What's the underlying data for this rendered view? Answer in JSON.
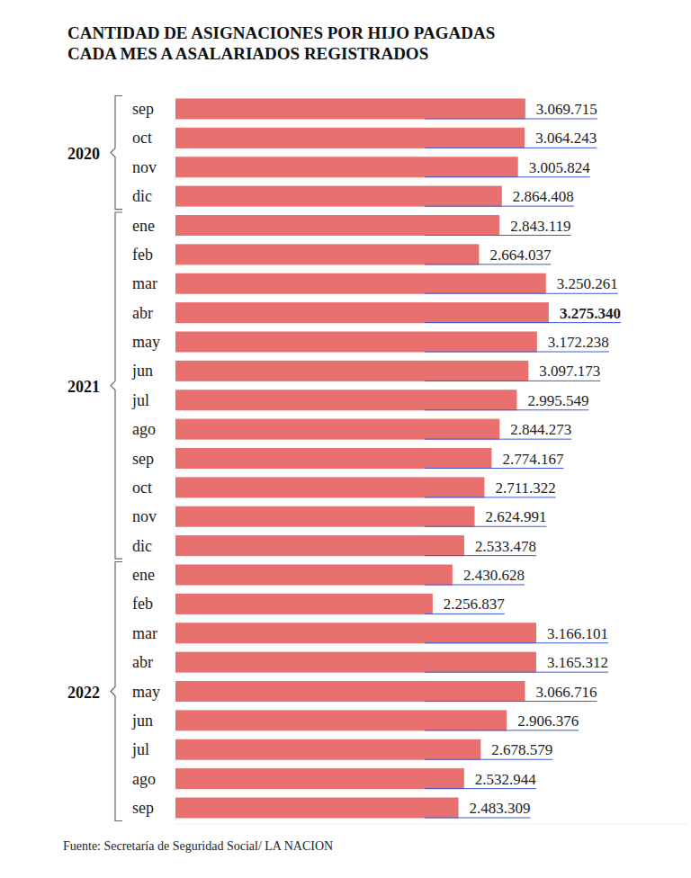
{
  "chart_data": {
    "type": "bar",
    "orientation": "horizontal",
    "title": "CANTIDAD DE ASIGNACIONES POR HIJO PAGADAS\nCADA MES A ASALARIADOS REGISTRADOS",
    "source": "Fuente: Secretaría de Seguridad Social/ LA NACION",
    "categories": [
      "sep",
      "oct",
      "nov",
      "dic",
      "ene",
      "feb",
      "mar",
      "abr",
      "may",
      "jun",
      "jul",
      "ago",
      "sep",
      "oct",
      "nov",
      "dic",
      "ene",
      "feb",
      "mar",
      "abr",
      "may",
      "jun",
      "jul",
      "ago",
      "sep"
    ],
    "groups": [
      "2020",
      "2020",
      "2020",
      "2020",
      "2021",
      "2021",
      "2021",
      "2021",
      "2021",
      "2021",
      "2021",
      "2021",
      "2021",
      "2021",
      "2021",
      "2021",
      "2022",
      "2022",
      "2022",
      "2022",
      "2022",
      "2022",
      "2022",
      "2022",
      "2022"
    ],
    "values": [
      3069715,
      3064243,
      3005824,
      2864408,
      2843119,
      2664037,
      3250261,
      3275340,
      3172238,
      3097173,
      2995549,
      2844273,
      2774167,
      2711322,
      2624991,
      2533478,
      2430628,
      2256837,
      3166101,
      3165312,
      3066716,
      2906376,
      2678579,
      2532944,
      2483309
    ],
    "value_labels": [
      "3.069.715",
      "3.064.243",
      "3.005.824",
      "2.864.408",
      "2.843.119",
      "2.664.037",
      "3.250.261",
      "3.275.340",
      "3.172.238",
      "3.097.173",
      "2.995.549",
      "2.844.273",
      "2.774.167",
      "2.711.322",
      "2.624.991",
      "2.533.478",
      "2.430.628",
      "2.256.837",
      "3.166.101",
      "3.165.312",
      "3.066.716",
      "2.906.376",
      "2.678.579",
      "2.532.944",
      "2.483.309"
    ],
    "color": "#e8706e",
    "xlim": [
      0,
      4500000
    ],
    "xticks": [],
    "tick_labels": "y",
    "data_labels": true,
    "grid": false
  }
}
